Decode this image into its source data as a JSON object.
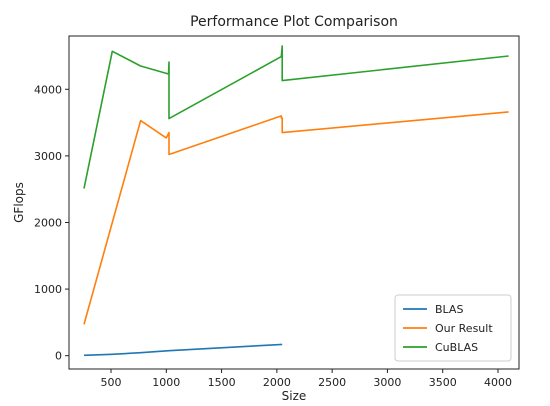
{
  "chart_data": {
    "type": "line",
    "title": "Performance Plot Comparison",
    "xlabel": "Size",
    "ylabel": "GFlops",
    "xlim": [
      120,
      4190
    ],
    "ylim": [
      -200,
      4800
    ],
    "xticks": [
      500,
      1000,
      1500,
      2000,
      2500,
      3000,
      3500,
      4000
    ],
    "yticks": [
      0,
      1000,
      2000,
      3000,
      4000
    ],
    "grid": false,
    "legend_position": "lower-right",
    "series": [
      {
        "name": "BLAS",
        "color": "#1f77b4",
        "x": [
          256,
          512,
          768,
          1024,
          2048
        ],
        "y": [
          5,
          20,
          45,
          75,
          170
        ]
      },
      {
        "name": "Our Result",
        "color": "#ff7f0e",
        "x": [
          256,
          768,
          1000,
          1024,
          1024,
          2040,
          2040,
          2048,
          2048,
          4096
        ],
        "y": [
          470,
          3530,
          3270,
          3350,
          3020,
          3600,
          3570,
          3570,
          3350,
          3660
        ]
      },
      {
        "name": "CuBLAS",
        "color": "#2ca02c",
        "x": [
          256,
          512,
          768,
          1020,
          1024,
          1024,
          2040,
          2048,
          2048,
          4096
        ],
        "y": [
          2510,
          4570,
          4350,
          4230,
          4410,
          3560,
          4490,
          4650,
          4130,
          4500
        ]
      }
    ]
  }
}
